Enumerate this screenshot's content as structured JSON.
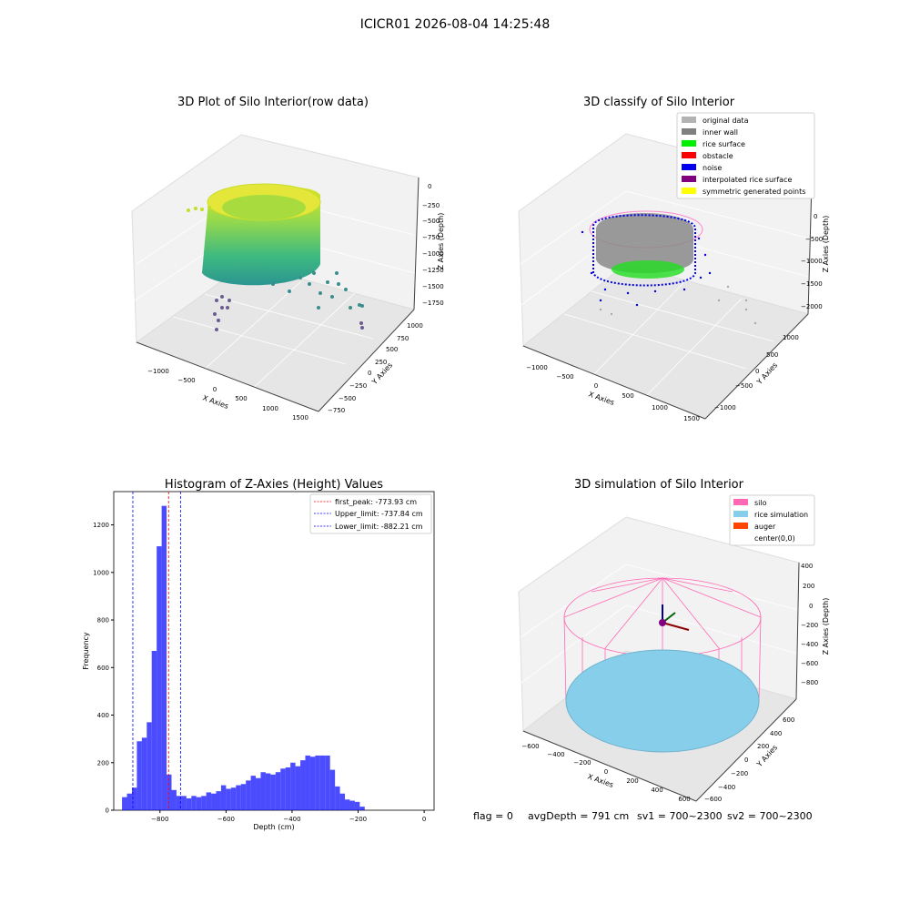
{
  "suptitle": "ICICR01 2026-08-04 14:25:48",
  "panel1": {
    "title": "3D Plot of Silo Interior(row data)",
    "xlabel": "X Axies",
    "ylabel": "Y Axies",
    "zlabel": "Z Axies (Depth)",
    "xticks": [
      "−1000",
      "−500",
      "0",
      "500",
      "1000",
      "1500"
    ],
    "yticks": [
      "−750",
      "−500",
      "−250",
      "0",
      "250",
      "500",
      "750",
      "1000"
    ],
    "zticks": [
      "0",
      "−250",
      "−500",
      "−750",
      "−1000",
      "−1250",
      "−1500",
      "−1750"
    ]
  },
  "panel2": {
    "title": "3D classify of Silo Interior",
    "xlabel": "X Axies",
    "ylabel": "Y Axies",
    "zlabel": "Z Axies (Depth)",
    "xticks": [
      "−1000",
      "−500",
      "0",
      "500",
      "1000",
      "1500"
    ],
    "yticks": [
      "−1000",
      "−500",
      "0",
      "500",
      "1000"
    ],
    "zticks": [
      "0",
      "−500",
      "−1000",
      "−1500",
      "−2000"
    ],
    "legend": [
      {
        "label": "original data",
        "color": "#b3b3b3"
      },
      {
        "label": "inner wall",
        "color": "#808080"
      },
      {
        "label": "rice surface",
        "color": "#00ee00"
      },
      {
        "label": "obstacle",
        "color": "#ff0000"
      },
      {
        "label": "noise",
        "color": "#0000ee"
      },
      {
        "label": "interpolated rice surface",
        "color": "#800080"
      },
      {
        "label": "symmetric generated points",
        "color": "#ffff00"
      }
    ]
  },
  "panel4": {
    "title": "3D simulation of Silo Interior",
    "xlabel": "X Axies",
    "ylabel": "Y Axies",
    "zlabel": "Z Axies (Depth)",
    "xticks": [
      "−600",
      "−400",
      "−200",
      "0",
      "200",
      "400",
      "600"
    ],
    "yticks": [
      "−600",
      "−400",
      "−200",
      "0",
      "200",
      "400",
      "600"
    ],
    "zticks": [
      "400",
      "200",
      "0",
      "−200",
      "−400",
      "−600",
      "−800"
    ],
    "legend": [
      {
        "label": "silo",
        "color": "#ff69b4"
      },
      {
        "label": "rice simulation",
        "color": "#87ceeb"
      },
      {
        "label": "auger",
        "color": "#ff4500"
      },
      {
        "label": "center(0,0)",
        "color": ""
      }
    ]
  },
  "status": {
    "flag": "flag = 0",
    "avg": "avgDepth = 791 cm",
    "sv1": "sv1 = 700~2300",
    "sv2": "sv2 = 700~2300"
  },
  "chart_data": {
    "type": "bar",
    "title": "Histogram of Z-Axies (Height) Values",
    "xlabel": "Depth (cm)",
    "ylabel": "Frequency",
    "xlim": [
      -940,
      30
    ],
    "ylim": [
      0,
      1340
    ],
    "xticks": [
      -800,
      -600,
      -400,
      -200,
      0
    ],
    "xtick_labels": [
      "−800",
      "−600",
      "−400",
      "−200",
      "0"
    ],
    "yticks": [
      0,
      200,
      400,
      600,
      800,
      1000,
      1200
    ],
    "bin_width": 15,
    "bins_start": -915,
    "values": [
      55,
      70,
      95,
      290,
      305,
      370,
      670,
      1110,
      1280,
      150,
      85,
      60,
      60,
      50,
      60,
      55,
      60,
      75,
      70,
      80,
      105,
      90,
      95,
      105,
      110,
      125,
      145,
      135,
      160,
      155,
      150,
      160,
      175,
      180,
      200,
      185,
      210,
      230,
      225,
      230,
      230,
      230,
      170,
      100,
      70,
      45,
      40,
      35,
      15
    ],
    "bar_color": "#0000ff",
    "lines": [
      {
        "label": "first_peak: -773.93 cm",
        "x": -773.93,
        "color": "#ff0000"
      },
      {
        "label": "Upper_limit: -737.84 cm",
        "x": -737.84,
        "color": "#0000ff"
      },
      {
        "label": "Lower_limit: -882.21 cm",
        "x": -882.21,
        "color": "#0000ff"
      }
    ],
    "legend_position": "top-right"
  }
}
